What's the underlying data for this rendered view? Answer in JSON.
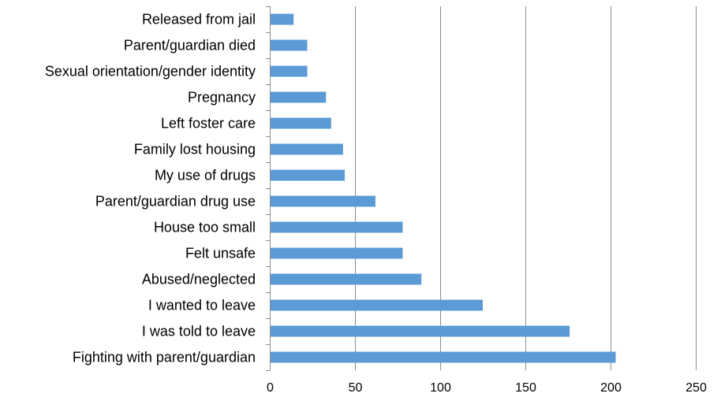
{
  "chart_data": {
    "type": "bar",
    "orientation": "horizontal",
    "categories": [
      "Released from jail",
      "Parent/guardian died",
      "Sexual orientation/gender identity",
      "Pregnancy",
      "Left foster care",
      "Family lost housing",
      "My use of drugs",
      "Parent/guardian drug use",
      "House too small",
      "Felt unsafe",
      "Abused/neglected",
      "I wanted to leave",
      "I was told to leave",
      "Fighting with parent/guardian"
    ],
    "values": [
      14,
      22,
      22,
      33,
      36,
      43,
      44,
      62,
      78,
      78,
      89,
      125,
      176,
      203
    ],
    "xlim": [
      0,
      250
    ],
    "xticks": [
      "0",
      "50",
      "100",
      "150",
      "200",
      "250"
    ],
    "xtick_values": [
      0,
      50,
      100,
      150,
      200,
      250
    ],
    "grid": "vertical",
    "legend": "none",
    "bar_color": "#5b9bd5"
  }
}
